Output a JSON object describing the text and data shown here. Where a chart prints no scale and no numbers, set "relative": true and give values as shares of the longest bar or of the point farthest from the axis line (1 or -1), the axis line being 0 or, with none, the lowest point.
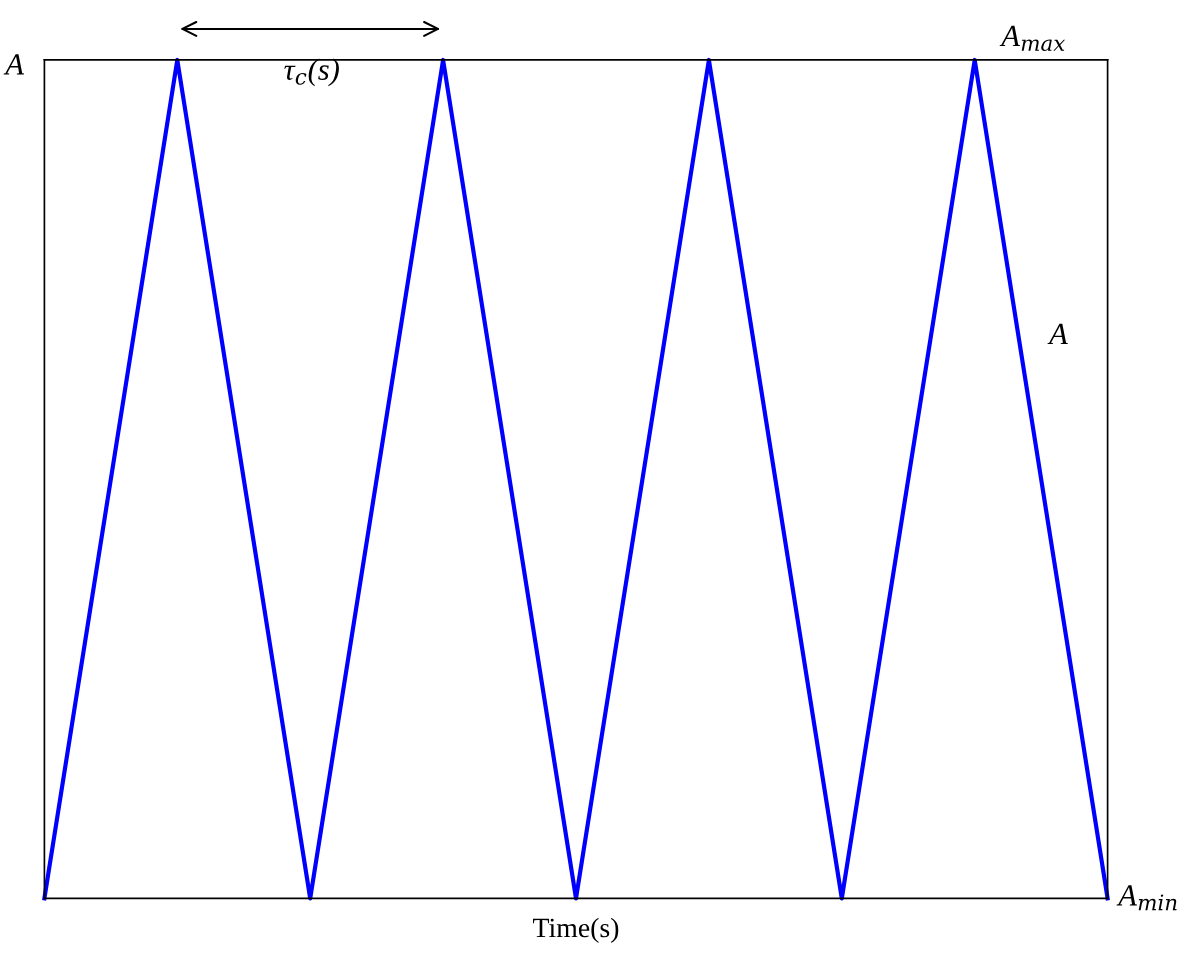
{
  "chart_data": {
    "type": "line",
    "relative": true,
    "xlabel": "Time(s)",
    "ylabel": "A",
    "categories": [
      null,
      null,
      null,
      null,
      null,
      null,
      null,
      null,
      null
    ],
    "series": [
      {
        "color": "#0000ff",
        "values": [
          0,
          1,
          0,
          1,
          0,
          1,
          0,
          1,
          0
        ]
      }
    ],
    "annotations": [
      "A$_{max}$",
      "A$_{min}$",
      "A",
      "τ$_{c}$(s)"
    ],
    "legend": false,
    "marker": "none",
    "line_style": "solid"
  }
}
